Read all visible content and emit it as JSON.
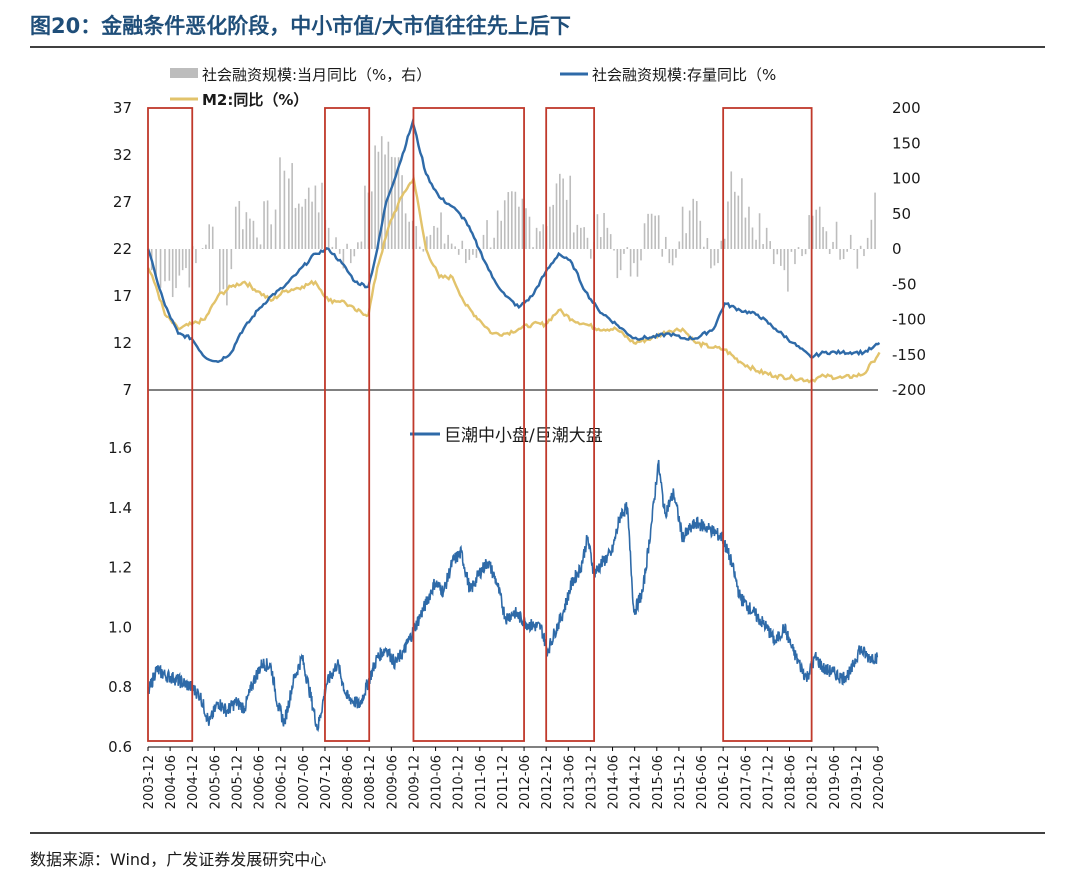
{
  "figure": {
    "title": "图20：金融条件恶化阶段，中小市值/大市值往往先上后下",
    "source": "数据来源：Wind，广发证券发展研究中心"
  },
  "colors": {
    "title": "#1f4e79",
    "bars": "#bdbdbd",
    "tsf_stock": "#2e6aa8",
    "m2": "#e2c36b",
    "ratio": "#2e6aa8",
    "box": "#c0392b"
  },
  "chart_data": [
    {
      "type": "line",
      "legend": [
        {
          "name": "社会融资规模:当月同比（%，右）",
          "kind": "bar",
          "color": "#bdbdbd"
        },
        {
          "name": "社会融资规模:存量同比（%",
          "kind": "line",
          "color": "#2e6aa8"
        },
        {
          "name": "M2:同比（%）",
          "kind": "line",
          "color": "#e2c36b"
        }
      ],
      "left_axis": {
        "min": 7,
        "max": 37,
        "ticks": [
          7,
          12,
          17,
          22,
          27,
          32,
          37
        ]
      },
      "right_axis": {
        "min": -200,
        "max": 200,
        "ticks": [
          -200,
          -150,
          -100,
          -50,
          0,
          50,
          100,
          150,
          200
        ]
      },
      "series": [
        {
          "name": "社会融资规模:存量同比（%",
          "axis": "left",
          "points": [
            [
              2003.92,
              22
            ],
            [
              2004.1,
              19
            ],
            [
              2004.3,
              16
            ],
            [
              2004.6,
              13
            ],
            [
              2004.9,
              12.5
            ],
            [
              2005.2,
              10.5
            ],
            [
              2005.5,
              10
            ],
            [
              2005.8,
              11
            ],
            [
              2006.0,
              13
            ],
            [
              2006.4,
              15.5
            ],
            [
              2006.7,
              17
            ],
            [
              2007.0,
              18
            ],
            [
              2007.3,
              19.5
            ],
            [
              2007.7,
              21.5
            ],
            [
              2008.0,
              22
            ],
            [
              2008.3,
              20.5
            ],
            [
              2008.6,
              18.5
            ],
            [
              2008.9,
              18
            ],
            [
              2009.1,
              22
            ],
            [
              2009.3,
              27
            ],
            [
              2009.6,
              31
            ],
            [
              2009.9,
              35.5
            ],
            [
              2010.2,
              30
            ],
            [
              2010.5,
              27.5
            ],
            [
              2010.8,
              26.5
            ],
            [
              2011.1,
              25
            ],
            [
              2011.4,
              22
            ],
            [
              2011.7,
              19
            ],
            [
              2012.0,
              17
            ],
            [
              2012.3,
              15.8
            ],
            [
              2012.6,
              17
            ],
            [
              2012.9,
              19.5
            ],
            [
              2013.2,
              21.5
            ],
            [
              2013.5,
              20.5
            ],
            [
              2013.8,
              17.5
            ],
            [
              2014.1,
              15.5
            ],
            [
              2014.5,
              14
            ],
            [
              2014.9,
              12.5
            ],
            [
              2015.3,
              12.6
            ],
            [
              2015.7,
              13
            ],
            [
              2016.0,
              12.5
            ],
            [
              2016.3,
              12.5
            ],
            [
              2016.7,
              13.5
            ],
            [
              2016.95,
              16.2
            ],
            [
              2017.3,
              15.5
            ],
            [
              2017.7,
              15
            ],
            [
              2018.1,
              13.5
            ],
            [
              2018.5,
              12
            ],
            [
              2018.9,
              10.5
            ],
            [
              2019.2,
              11
            ],
            [
              2019.6,
              11
            ],
            [
              2019.9,
              11
            ],
            [
              2020.1,
              11
            ],
            [
              2020.3,
              11.5
            ],
            [
              2020.45,
              12
            ]
          ]
        },
        {
          "name": "M2:同比（%）",
          "axis": "left",
          "points": [
            [
              2003.92,
              20
            ],
            [
              2004.1,
              18
            ],
            [
              2004.3,
              15
            ],
            [
              2004.6,
              13.5
            ],
            [
              2004.9,
              14
            ],
            [
              2005.2,
              14.5
            ],
            [
              2005.5,
              17
            ],
            [
              2005.8,
              18
            ],
            [
              2006.1,
              18.5
            ],
            [
              2006.4,
              17.5
            ],
            [
              2006.7,
              16.5
            ],
            [
              2007.0,
              17.5
            ],
            [
              2007.4,
              18
            ],
            [
              2007.7,
              18.5
            ],
            [
              2008.0,
              16.5
            ],
            [
              2008.3,
              16.5
            ],
            [
              2008.6,
              15.5
            ],
            [
              2008.9,
              15
            ],
            [
              2009.1,
              20
            ],
            [
              2009.4,
              25
            ],
            [
              2009.7,
              28
            ],
            [
              2009.92,
              29.5
            ],
            [
              2010.2,
              22
            ],
            [
              2010.5,
              19
            ],
            [
              2010.8,
              19
            ],
            [
              2011.1,
              16
            ],
            [
              2011.4,
              14.5
            ],
            [
              2011.7,
              13
            ],
            [
              2012.0,
              13
            ],
            [
              2012.3,
              13.5
            ],
            [
              2012.6,
              14
            ],
            [
              2012.9,
              14
            ],
            [
              2013.2,
              15.5
            ],
            [
              2013.5,
              14.5
            ],
            [
              2013.8,
              14
            ],
            [
              2014.1,
              13.5
            ],
            [
              2014.5,
              13.5
            ],
            [
              2014.9,
              12
            ],
            [
              2015.3,
              12.5
            ],
            [
              2015.7,
              13.3
            ],
            [
              2016.0,
              13.5
            ],
            [
              2016.3,
              12
            ],
            [
              2016.7,
              11.5
            ],
            [
              2016.95,
              11.3
            ],
            [
              2017.3,
              10
            ],
            [
              2017.7,
              9
            ],
            [
              2018.1,
              8.5
            ],
            [
              2018.5,
              8.3
            ],
            [
              2018.9,
              8
            ],
            [
              2019.2,
              8.5
            ],
            [
              2019.6,
              8.3
            ],
            [
              2019.9,
              8.5
            ],
            [
              2020.1,
              8.7
            ],
            [
              2020.3,
              10
            ],
            [
              2020.45,
              11
            ]
          ]
        },
        {
          "name": "社会融资规模:当月同比（%，右）",
          "type": "bar",
          "axis": "right",
          "points": [
            [
              2004.0,
              -30
            ],
            [
              2004.2,
              -55
            ],
            [
              2004.4,
              -45
            ],
            [
              2004.7,
              -30
            ],
            [
              2005.0,
              -20
            ],
            [
              2005.3,
              35
            ],
            [
              2005.7,
              -80
            ],
            [
              2005.9,
              60
            ],
            [
              2006.3,
              40
            ],
            [
              2006.7,
              35
            ],
            [
              2006.9,
              130
            ],
            [
              2007.1,
              100
            ],
            [
              2007.4,
              60
            ],
            [
              2007.7,
              90
            ],
            [
              2008.0,
              30
            ],
            [
              2008.5,
              -20
            ],
            [
              2008.9,
              80
            ],
            [
              2009.2,
              160
            ],
            [
              2009.5,
              130
            ],
            [
              2009.9,
              40
            ],
            [
              2010.3,
              20
            ],
            [
              2010.7,
              20
            ],
            [
              2011.1,
              -20
            ],
            [
              2011.5,
              20
            ],
            [
              2011.9,
              40
            ],
            [
              2012.3,
              60
            ],
            [
              2012.7,
              30
            ],
            [
              2013.0,
              60
            ],
            [
              2013.3,
              100
            ],
            [
              2013.7,
              30
            ],
            [
              2014.0,
              10
            ],
            [
              2014.3,
              30
            ],
            [
              2014.6,
              -30
            ],
            [
              2014.9,
              -20
            ],
            [
              2015.3,
              50
            ],
            [
              2015.7,
              -20
            ],
            [
              2016.0,
              60
            ],
            [
              2016.4,
              40
            ],
            [
              2016.8,
              -20
            ],
            [
              2017.1,
              110
            ],
            [
              2017.5,
              60
            ],
            [
              2017.9,
              30
            ],
            [
              2018.3,
              -30
            ],
            [
              2018.7,
              -10
            ],
            [
              2019.1,
              60
            ],
            [
              2019.4,
              10
            ],
            [
              2019.8,
              20
            ],
            [
              2020.1,
              -10
            ],
            [
              2020.35,
              80
            ]
          ]
        }
      ]
    },
    {
      "type": "line",
      "legend": [
        {
          "name": "巨潮中小盘/巨潮大盘",
          "kind": "line",
          "color": "#2e6aa8"
        }
      ],
      "y_axis": {
        "min": 0.6,
        "max": 1.6,
        "ticks": [
          "0.6",
          "0.8",
          "1.0",
          "1.2",
          "1.4",
          "1.6"
        ]
      },
      "x_axis": {
        "min": 2003.9167,
        "max": 2020.4167,
        "ticks": [
          "2003-12",
          "2004-06",
          "2004-12",
          "2005-06",
          "2005-12",
          "2006-06",
          "2006-12",
          "2007-06",
          "2007-12",
          "2008-06",
          "2008-12",
          "2009-06",
          "2009-12",
          "2010-06",
          "2010-12",
          "2011-06",
          "2011-12",
          "2012-06",
          "2012-12",
          "2013-06",
          "2013-12",
          "2014-06",
          "2014-12",
          "2015-06",
          "2015-12",
          "2016-06",
          "2016-12",
          "2017-06",
          "2017-12",
          "2018-06",
          "2018-12",
          "2019-06",
          "2019-12",
          "2020-06"
        ]
      },
      "series": [
        {
          "name": "巨潮中小盘/巨潮大盘",
          "points": [
            [
              2003.92,
              0.78
            ],
            [
              2004.1,
              0.86
            ],
            [
              2004.3,
              0.84
            ],
            [
              2004.5,
              0.83
            ],
            [
              2004.9,
              0.8
            ],
            [
              2005.1,
              0.77
            ],
            [
              2005.3,
              0.68
            ],
            [
              2005.5,
              0.75
            ],
            [
              2005.7,
              0.72
            ],
            [
              2005.9,
              0.75
            ],
            [
              2006.1,
              0.73
            ],
            [
              2006.3,
              0.82
            ],
            [
              2006.5,
              0.88
            ],
            [
              2006.7,
              0.87
            ],
            [
              2006.85,
              0.74
            ],
            [
              2007.0,
              0.68
            ],
            [
              2007.2,
              0.82
            ],
            [
              2007.4,
              0.9
            ],
            [
              2007.55,
              0.8
            ],
            [
              2007.75,
              0.66
            ],
            [
              2007.95,
              0.81
            ],
            [
              2008.2,
              0.88
            ],
            [
              2008.4,
              0.77
            ],
            [
              2008.7,
              0.74
            ],
            [
              2008.9,
              0.82
            ],
            [
              2009.1,
              0.9
            ],
            [
              2009.3,
              0.93
            ],
            [
              2009.5,
              0.88
            ],
            [
              2009.7,
              0.92
            ],
            [
              2009.95,
              1.0
            ],
            [
              2010.2,
              1.08
            ],
            [
              2010.4,
              1.15
            ],
            [
              2010.6,
              1.12
            ],
            [
              2010.8,
              1.22
            ],
            [
              2011.0,
              1.25
            ],
            [
              2011.2,
              1.12
            ],
            [
              2011.4,
              1.18
            ],
            [
              2011.6,
              1.22
            ],
            [
              2011.8,
              1.15
            ],
            [
              2012.0,
              1.03
            ],
            [
              2012.2,
              1.05
            ],
            [
              2012.5,
              1.01
            ],
            [
              2012.8,
              1.0
            ],
            [
              2012.95,
              0.92
            ],
            [
              2013.1,
              0.98
            ],
            [
              2013.3,
              1.05
            ],
            [
              2013.5,
              1.15
            ],
            [
              2013.7,
              1.2
            ],
            [
              2013.85,
              1.3
            ],
            [
              2014.0,
              1.18
            ],
            [
              2014.2,
              1.22
            ],
            [
              2014.4,
              1.25
            ],
            [
              2014.6,
              1.38
            ],
            [
              2014.75,
              1.4
            ],
            [
              2014.9,
              1.05
            ],
            [
              2015.1,
              1.12
            ],
            [
              2015.3,
              1.35
            ],
            [
              2015.45,
              1.55
            ],
            [
              2015.6,
              1.38
            ],
            [
              2015.8,
              1.45
            ],
            [
              2016.0,
              1.3
            ],
            [
              2016.3,
              1.35
            ],
            [
              2016.6,
              1.33
            ],
            [
              2016.9,
              1.3
            ],
            [
              2017.1,
              1.22
            ],
            [
              2017.3,
              1.1
            ],
            [
              2017.6,
              1.05
            ],
            [
              2017.9,
              1.0
            ],
            [
              2018.1,
              0.95
            ],
            [
              2018.3,
              1.0
            ],
            [
              2018.5,
              0.92
            ],
            [
              2018.8,
              0.83
            ],
            [
              2019.0,
              0.9
            ],
            [
              2019.2,
              0.86
            ],
            [
              2019.4,
              0.85
            ],
            [
              2019.6,
              0.83
            ],
            [
              2019.8,
              0.85
            ],
            [
              2020.0,
              0.93
            ],
            [
              2020.2,
              0.9
            ],
            [
              2020.4,
              0.9
            ]
          ]
        }
      ]
    }
  ],
  "highlight_periods": [
    {
      "start": "2003-12",
      "end": "2004-12"
    },
    {
      "start": "2007-12",
      "end": "2008-12"
    },
    {
      "start": "2009-12",
      "end": "2012-06"
    },
    {
      "start": "2012-12",
      "end": "2014-01"
    },
    {
      "start": "2016-12",
      "end": "2018-12"
    }
  ]
}
